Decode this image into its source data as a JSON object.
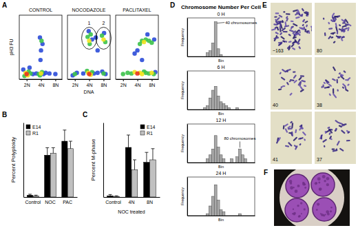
{
  "chart_data": [
    {
      "type": "scatter",
      "title": "CONTROL",
      "ylabel": "pH3 FU",
      "log": "x",
      "xlim": [
        1.4,
        11
      ],
      "ylim": [
        0,
        100
      ],
      "xticks": [
        {
          "value": 2,
          "label": "2N"
        },
        {
          "value": 4,
          "label": "4N"
        },
        {
          "value": 8,
          "label": "8N"
        }
      ],
      "tick_labels": "x",
      "series": [
        {
          "x": [
            2.7,
            3.2,
            4.5,
            5,
            3.9,
            4,
            3.8,
            4.3,
            1.7,
            2.3,
            6,
            8,
            2.2,
            1.8,
            2.4,
            3.6,
            4.2,
            3.8,
            4.1,
            1.9,
            2.1,
            4,
            2
          ],
          "values": [
            8,
            9,
            8,
            10,
            30,
            45,
            65,
            55,
            15,
            18,
            9,
            8,
            12,
            5,
            9,
            8,
            11,
            6,
            60,
            10,
            6,
            9,
            8
          ],
          "colors": [
            "#2b4bd8",
            "#2b4bd8",
            "#2b4bd8",
            "#2b4bd8",
            "#2b4bd8",
            "#2b4bd8",
            "#2b4bd8",
            "#2b4bd8",
            "#2b4bd8",
            "#2b4bd8",
            "#2b4bd8",
            "#2b4bd8",
            "#3cc24a",
            "#3cc24a",
            "#3cc24a",
            "#3cc24a",
            "#3cc24a",
            "#3cc24a",
            "#3cc24a",
            "#f2e21e",
            "#f2e21e",
            "#f2e21e",
            "#e8321e"
          ]
        }
      ]
    },
    {
      "type": "scatter",
      "title": "NOCODAZOLE",
      "xlabel": "DNA",
      "log": "x",
      "xlim": [
        1.4,
        11
      ],
      "ylim": [
        0,
        100
      ],
      "xticks": [
        {
          "value": 2,
          "label": "2N"
        },
        {
          "value": 4,
          "label": "4N"
        },
        {
          "value": 8,
          "label": "8N"
        }
      ],
      "tick_labels": "x",
      "annotations": [
        {
          "text": "1",
          "x": 4,
          "y": 64
        },
        {
          "text": "2",
          "x": 8,
          "y": 64
        }
      ],
      "series": [
        {
          "x": [
            2.2,
            1.8,
            3,
            5,
            6,
            7.5,
            8.8,
            3.9,
            4.6,
            8.2,
            6,
            5.5,
            2,
            4.6,
            3.6,
            8,
            3.7,
            4.3,
            4.1,
            7.4,
            8.7,
            3.8,
            4.3,
            4,
            8,
            4
          ],
          "values": [
            10,
            6,
            9,
            9,
            10,
            12,
            8,
            75,
            62,
            72,
            45,
            65,
            8,
            11,
            13,
            9,
            66,
            70,
            55,
            68,
            58,
            10,
            7,
            60,
            62,
            8
          ],
          "colors": [
            "#2b4bd8",
            "#2b4bd8",
            "#2b4bd8",
            "#2b4bd8",
            "#2b4bd8",
            "#2b4bd8",
            "#2b4bd8",
            "#2b4bd8",
            "#2b4bd8",
            "#2b4bd8",
            "#2b4bd8",
            "#2b4bd8",
            "#3cc24a",
            "#3cc24a",
            "#3cc24a",
            "#3cc24a",
            "#3cc24a",
            "#3cc24a",
            "#3cc24a",
            "#3cc24a",
            "#3cc24a",
            "#f2e21e",
            "#f2e21e",
            "#f2e21e",
            "#f2e21e",
            "#e8321e"
          ]
        }
      ]
    },
    {
      "type": "scatter",
      "title": "PACLITAXEL",
      "log": "x",
      "xlim": [
        1.4,
        11
      ],
      "ylim": [
        0,
        100
      ],
      "xticks": [
        {
          "value": 2,
          "label": "2N"
        },
        {
          "value": 4,
          "label": "4N"
        },
        {
          "value": 8,
          "label": "8N"
        }
      ],
      "tick_labels": "x",
      "series": [
        {
          "x": [
            9.5,
            4,
            9,
            6.5,
            3.5,
            5,
            2,
            2.5,
            3,
            5.5,
            6,
            7,
            8.8,
            4.5,
            5,
            6,
            7,
            8,
            3.5,
            4.5,
            5,
            8,
            5.5,
            4
          ],
          "values": [
            11,
            45,
            62,
            70,
            40,
            30,
            8,
            10,
            9,
            12,
            10,
            9,
            8,
            55,
            60,
            62,
            60,
            57,
            11,
            10,
            8,
            10,
            58,
            9
          ],
          "colors": [
            "#2b4bd8",
            "#2b4bd8",
            "#2b4bd8",
            "#2b4bd8",
            "#2b4bd8",
            "#2b4bd8",
            "#3cc24a",
            "#3cc24a",
            "#3cc24a",
            "#3cc24a",
            "#3cc24a",
            "#3cc24a",
            "#3cc24a",
            "#3cc24a",
            "#3cc24a",
            "#3cc24a",
            "#3cc24a",
            "#3cc24a",
            "#f2e21e",
            "#f2e21e",
            "#f2e21e",
            "#f2e21e",
            "#f2e21e",
            "#e8321e"
          ]
        }
      ]
    },
    {
      "type": "bar",
      "ylabel": "Percent Polyploidy",
      "categories": [
        "Control",
        "NOC",
        "PAC"
      ],
      "series": [
        {
          "name": "E14",
          "color": "#000000",
          "values": [
            2,
            45,
            60
          ],
          "errors": [
            1,
            8,
            12
          ]
        },
        {
          "name": "R1",
          "color": "#c0c0c0",
          "values": [
            1,
            47,
            52
          ],
          "errors": [
            1,
            6,
            8
          ]
        }
      ],
      "ylim": [
        0,
        80
      ],
      "legend": "top-left",
      "tick_labels": "x"
    },
    {
      "type": "bar",
      "ylabel": "Percent M-phase",
      "xlabel": "NOC treated",
      "categories": [
        "Control",
        "4N",
        "8N"
      ],
      "series": [
        {
          "name": "E14",
          "color": "#000000",
          "values": [
            1,
            40,
            28
          ],
          "errors": [
            1,
            10,
            8
          ]
        },
        {
          "name": "R1",
          "color": "#c0c0c0",
          "values": [
            0.5,
            22,
            30
          ],
          "errors": [
            0.5,
            8,
            9
          ]
        }
      ],
      "ylim": [
        0,
        60
      ],
      "legend": "top-right",
      "tick_labels": "x"
    },
    {
      "type": "histogram",
      "title": "0 H",
      "xlabel": "Bin",
      "ylabel": "Frequency",
      "color": "#a9a9a9",
      "bins": [
        0,
        4,
        8,
        12,
        16,
        20,
        24,
        28,
        32,
        36,
        40,
        44,
        48,
        52,
        56,
        60,
        64,
        68,
        72,
        76,
        80,
        84,
        88,
        92,
        96,
        100
      ],
      "values": [
        0,
        0,
        0,
        0,
        0,
        0,
        0,
        2,
        3,
        7,
        18,
        4,
        1,
        0,
        0,
        0,
        0,
        0,
        0,
        0,
        0,
        0,
        0,
        0,
        0
      ],
      "xlim": [
        0,
        100
      ],
      "ylim": [
        0,
        20
      ],
      "tick_labels": false,
      "annotations": [
        {
          "text": "40 chromosomes",
          "x": 42,
          "y": 18
        }
      ]
    },
    {
      "type": "histogram",
      "title": "6 H",
      "xlabel": "Bin",
      "ylabel": "Frequency",
      "color": "#a9a9a9",
      "bins": [
        0,
        4,
        8,
        12,
        16,
        20,
        24,
        28,
        32,
        36,
        40,
        44,
        48,
        52,
        56,
        60,
        64,
        68,
        72,
        76,
        80,
        84,
        88,
        92,
        96,
        100
      ],
      "values": [
        0,
        0,
        0,
        0,
        0,
        0,
        1,
        2,
        6,
        10,
        12,
        7,
        4,
        3,
        2,
        1,
        0,
        0,
        1,
        0,
        0,
        0,
        0,
        0,
        0
      ],
      "xlim": [
        0,
        100
      ],
      "ylim": [
        0,
        20
      ],
      "tick_labels": false
    },
    {
      "type": "histogram",
      "title": "12 H",
      "xlabel": "Bin",
      "ylabel": "Frequency",
      "color": "#a9a9a9",
      "bins": [
        0,
        4,
        8,
        12,
        16,
        20,
        24,
        28,
        32,
        36,
        40,
        44,
        48,
        52,
        56,
        60,
        64,
        68,
        72,
        76,
        80,
        84,
        88,
        92,
        96,
        100
      ],
      "values": [
        0,
        0,
        0,
        0,
        0,
        0,
        0,
        2,
        4,
        7,
        14,
        8,
        4,
        2,
        0,
        0,
        2,
        0,
        3,
        7,
        4,
        2,
        0,
        0,
        0
      ],
      "xlim": [
        0,
        100
      ],
      "ylim": [
        0,
        20
      ],
      "tick_labels": false,
      "annotations": [
        {
          "text": "80 chromosomes",
          "x": 78,
          "y": 7
        }
      ]
    },
    {
      "type": "histogram",
      "title": "24 H",
      "xlabel": "Bin",
      "ylabel": "Frequency",
      "color": "#a9a9a9",
      "bins": [
        0,
        4,
        8,
        12,
        16,
        20,
        24,
        28,
        32,
        36,
        40,
        44,
        48,
        52,
        56,
        60,
        64,
        68,
        72,
        76,
        80,
        84,
        88,
        92,
        96,
        100
      ],
      "values": [
        0,
        0,
        0,
        0,
        0,
        0,
        0,
        1,
        5,
        10,
        16,
        8,
        3,
        2,
        0,
        0,
        0,
        0,
        0,
        1,
        0,
        0,
        0,
        0,
        0
      ],
      "xlim": [
        0,
        100
      ],
      "ylim": [
        0,
        20
      ],
      "tick_labels": false
    }
  ],
  "panel_labels": [
    "A",
    "B",
    "C",
    "D",
    "E",
    "F"
  ],
  "group_titles": {
    "D": "Chromosome Number Per Cell"
  },
  "micrographs": {
    "E": [
      "~163",
      "80",
      "40",
      "38",
      "41",
      "37"
    ]
  }
}
